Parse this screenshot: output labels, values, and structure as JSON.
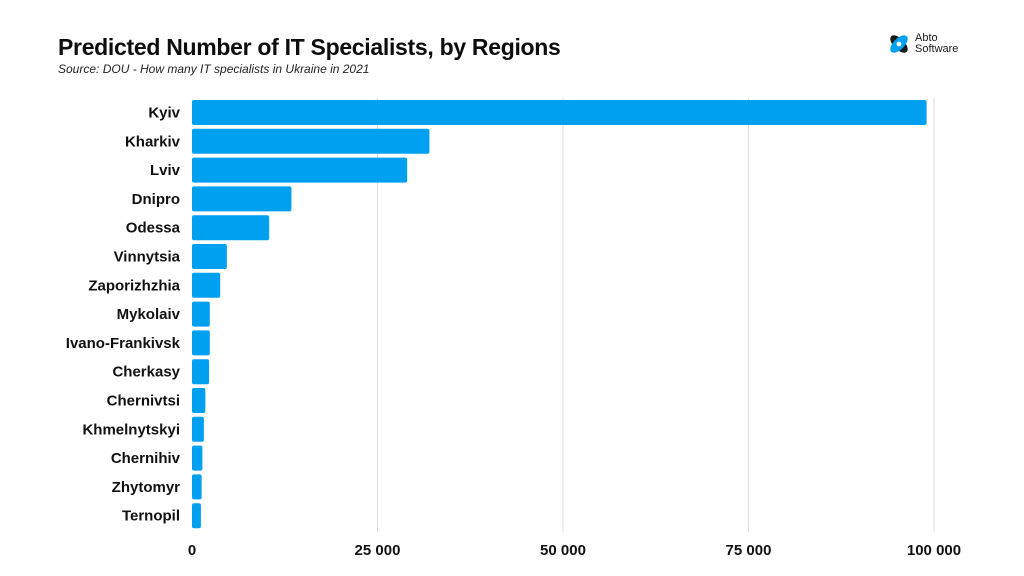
{
  "header": {
    "title": "Predicted Number of IT Specialists, by Regions",
    "subtitle": "Source: DOU - How many IT specialists in Ukraine in 2021"
  },
  "logo": {
    "line1": "Abto",
    "line2": "Software",
    "icon": "abto-logo-icon"
  },
  "chart_data": {
    "type": "bar",
    "orientation": "horizontal",
    "categories": [
      "Kyiv",
      "Kharkiv",
      "Lviv",
      "Dnipro",
      "Odessa",
      "Vinnytsia",
      "Zaporizhzhia",
      "Mykolaiv",
      "Ivano-Frankivsk",
      "Cherkasy",
      "Chernivtsi",
      "Khmelnytskyi",
      "Chernihiv",
      "Zhytomyr",
      "Ternopil"
    ],
    "values": [
      99000,
      32000,
      29000,
      13400,
      10400,
      4700,
      3800,
      2400,
      2400,
      2300,
      1800,
      1600,
      1400,
      1300,
      1200
    ],
    "xlim": [
      0,
      100000
    ],
    "xticks": [
      0,
      25000,
      50000,
      75000,
      100000
    ],
    "xtick_labels": [
      "0",
      "25 000",
      "50 000",
      "75 000",
      "100 000"
    ],
    "bar_color": "#00a0f0",
    "grid": true
  }
}
